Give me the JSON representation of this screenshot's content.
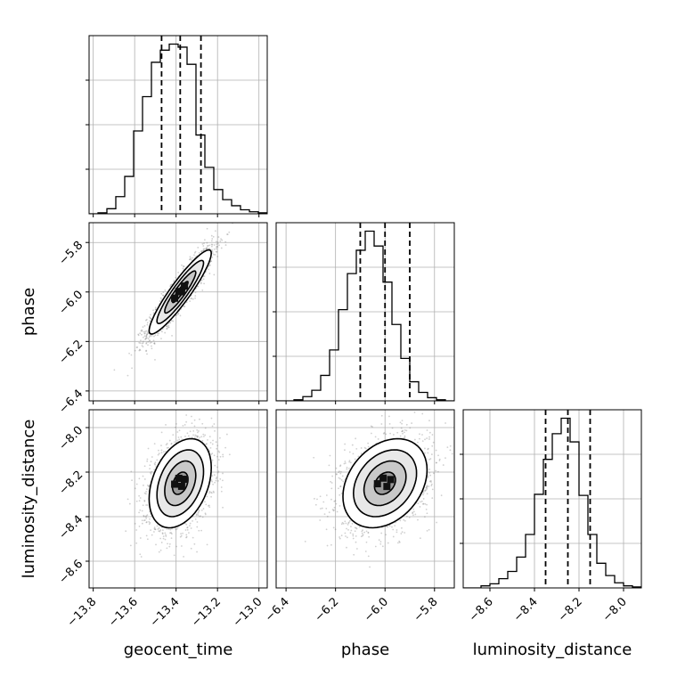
{
  "chart_data": {
    "type": "corner",
    "parameters": [
      "geocent_time",
      "phase",
      "luminosity_distance"
    ],
    "axis_labels": {
      "x": [
        "geocent_time",
        "phase",
        "luminosity_distance"
      ],
      "y": [
        "",
        "phase",
        "luminosity_distance"
      ]
    },
    "ranges": {
      "geocent_time": [
        -13.82,
        -12.96
      ],
      "phase": [
        -6.44,
        -5.72
      ],
      "luminosity_distance": [
        -8.72,
        -7.92
      ]
    },
    "ticks": {
      "geocent_time": [
        -13.8,
        -13.6,
        -13.4,
        -13.2,
        -13.0
      ],
      "phase": [
        -6.4,
        -6.2,
        -6.0,
        -5.8
      ],
      "luminosity_distance": [
        -8.6,
        -8.4,
        -8.2,
        -8.0
      ]
    },
    "tick_labels": {
      "geocent_time": [
        "−13.8",
        "−13.6",
        "−13.4",
        "−13.2",
        "−13.0"
      ],
      "phase": [
        "−6.4",
        "−6.2",
        "−6.0",
        "−5.8"
      ],
      "luminosity_distance": [
        "−8.6",
        "−8.4",
        "−8.2",
        "−8.0"
      ]
    },
    "quantiles": {
      "geocent_time": [
        -13.47,
        -13.38,
        -13.28
      ],
      "phase": [
        -6.1,
        -6.0,
        -5.9
      ],
      "luminosity_distance": [
        -8.35,
        -8.25,
        -8.15
      ]
    },
    "histograms": {
      "geocent_time": {
        "bin_start": -13.82,
        "bin_width": 0.043,
        "counts": [
          0,
          1,
          5,
          17,
          37,
          82,
          116,
          150,
          162,
          168,
          165,
          148,
          78,
          46,
          24,
          14,
          8,
          4,
          2,
          1
        ]
      },
      "phase": {
        "bin_start": -6.44,
        "bin_width": 0.036,
        "counts": [
          0,
          0,
          1,
          4,
          10,
          24,
          48,
          86,
          120,
          142,
          160,
          146,
          112,
          72,
          40,
          18,
          8,
          3,
          1,
          0
        ]
      },
      "luminosity_distance": {
        "bin_start": -8.72,
        "bin_width": 0.04,
        "counts": [
          0,
          0,
          2,
          4,
          9,
          16,
          30,
          52,
          91,
          125,
          150,
          165,
          142,
          90,
          52,
          24,
          12,
          5,
          2,
          1
        ]
      }
    },
    "samples": {
      "geocent_time": {
        "mean": -13.38,
        "sd": 0.075
      },
      "phase": {
        "mean": -6.0,
        "sd": 0.085
      },
      "luminosity_distance": {
        "mean": -8.25,
        "sd": 0.1
      },
      "correlations": {
        "phase|geocent_time": 0.92,
        "luminosity_distance|geocent_time": 0.35,
        "luminosity_distance|phase": 0.3
      }
    },
    "grid": true,
    "contour_levels": [
      "0.5",
      "1.0",
      "1.5",
      "2.0"
    ]
  }
}
